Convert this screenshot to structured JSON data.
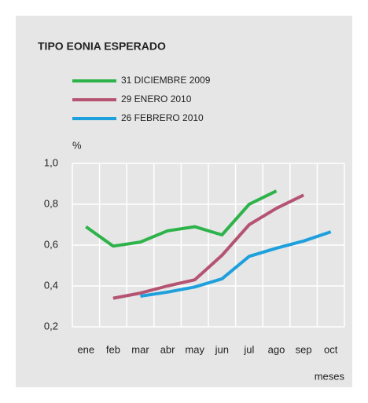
{
  "chart_data": {
    "type": "line",
    "title": "TIPO EONIA ESPERADO",
    "y_label": "%",
    "x_label": "meses",
    "categories": [
      "ene",
      "feb",
      "mar",
      "abr",
      "may",
      "jun",
      "jul",
      "ago",
      "sep",
      "oct"
    ],
    "series": [
      {
        "name": "31 DICIEMBRE 2009",
        "color": "#2db34a",
        "values": [
          0.69,
          0.595,
          0.615,
          0.67,
          0.69,
          0.65,
          0.8,
          0.865,
          null,
          null
        ]
      },
      {
        "name": "29 ENERO 2010",
        "color": "#b55472",
        "values": [
          null,
          0.34,
          0.365,
          0.4,
          0.43,
          0.55,
          0.7,
          0.78,
          0.845,
          null
        ]
      },
      {
        "name": "26 FEBRERO 2010",
        "color": "#1ea0dc",
        "values": [
          null,
          null,
          0.35,
          0.37,
          0.395,
          0.435,
          0.545,
          0.585,
          0.62,
          0.665
        ]
      }
    ],
    "ylim": [
      0.2,
      1.0
    ],
    "yticks": [
      {
        "value": 0.2,
        "label": "0,2"
      },
      {
        "value": 0.4,
        "label": "0,4"
      },
      {
        "value": 0.6,
        "label": "0,6"
      },
      {
        "value": 0.8,
        "label": "0,8"
      },
      {
        "value": 1.0,
        "label": "1,0"
      }
    ],
    "grid": true
  }
}
